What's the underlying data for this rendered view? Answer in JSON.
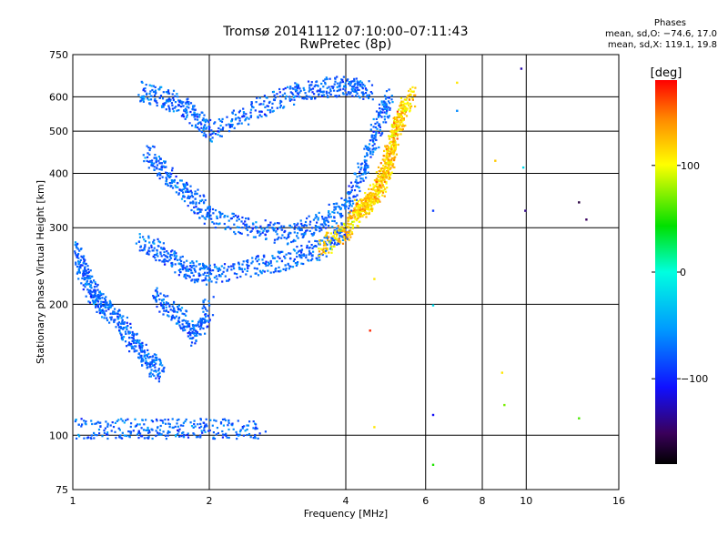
{
  "header": {
    "title_line1": "Tromsø 20141112 07:10:00–07:11:43",
    "title_line2": "RwPretec (8p)",
    "stats_heading": "Phases",
    "stats_o": "mean, sd,O: −74.6, 17.0",
    "stats_x": "mean, sd,X: 119.1, 19.8"
  },
  "colorbar": {
    "label": "[deg]",
    "ticks": [
      {
        "label": "100",
        "value": 100
      },
      {
        "label": "0",
        "value": 0
      },
      {
        "label": "−100",
        "value": -100
      }
    ],
    "range": [
      -180,
      180
    ]
  },
  "chart_data": {
    "type": "scatter",
    "title": "Tromsø 20141112 07:10:00–07:11:43",
    "subtitle": "RwPretec (8p)",
    "xlabel": "Frequency [MHz]",
    "ylabel": "Stationary phase Virtual Height [km]",
    "x_scale": "log",
    "y_scale": "log",
    "xlim": [
      1,
      16
    ],
    "ylim": [
      75,
      750
    ],
    "x_ticks": [
      {
        "label": "1",
        "value": 1
      },
      {
        "label": "2",
        "value": 2
      },
      {
        "label": "4",
        "value": 4
      },
      {
        "label": "6",
        "value": 6
      },
      {
        "label": "8",
        "value": 8
      },
      {
        "label": "10",
        "value": 10
      },
      {
        "label": "16",
        "value": 16
      }
    ],
    "y_ticks": [
      {
        "label": "75",
        "value": 75
      },
      {
        "label": "100",
        "value": 100
      },
      {
        "label": "200",
        "value": 200
      },
      {
        "label": "300",
        "value": 300
      },
      {
        "label": "400",
        "value": 400
      },
      {
        "label": "500",
        "value": 500
      },
      {
        "label": "600",
        "value": 600
      },
      {
        "label": "750",
        "value": 750
      }
    ],
    "grid": true,
    "color_scale": "phase (deg), rainbow from black (−180) to red (180)",
    "series": [
      {
        "name": "O-mode",
        "phase_mean": -74.6,
        "phase_sd": 17.0
      },
      {
        "name": "X-mode",
        "phase_mean": 119.1,
        "phase_sd": 19.8
      }
    ],
    "traces": [
      {
        "mode": "O",
        "points": [
          [
            1.0,
            270
          ],
          [
            1.05,
            240
          ],
          [
            1.1,
            215
          ],
          [
            1.15,
            200
          ],
          [
            1.25,
            185
          ],
          [
            1.35,
            165
          ],
          [
            1.45,
            150
          ],
          [
            1.55,
            140
          ]
        ]
      },
      {
        "mode": "O",
        "points": [
          [
            1.4,
            620
          ],
          [
            1.6,
            600
          ],
          [
            1.8,
            560
          ],
          [
            2.0,
            500
          ],
          [
            2.5,
            560
          ],
          [
            3.0,
            610
          ],
          [
            3.5,
            630
          ],
          [
            4.0,
            640
          ],
          [
            4.5,
            620
          ]
        ]
      },
      {
        "mode": "O",
        "points": [
          [
            1.45,
            450
          ],
          [
            1.6,
            400
          ],
          [
            1.8,
            360
          ],
          [
            2.0,
            320
          ],
          [
            2.5,
            300
          ],
          [
            3.0,
            290
          ],
          [
            3.5,
            310
          ],
          [
            4.0,
            340
          ],
          [
            4.4,
            420
          ],
          [
            4.7,
            520
          ],
          [
            5.0,
            600
          ]
        ]
      },
      {
        "mode": "O",
        "points": [
          [
            1.4,
            280
          ],
          [
            1.6,
            260
          ],
          [
            1.8,
            240
          ],
          [
            2.0,
            235
          ],
          [
            2.5,
            245
          ],
          [
            3.0,
            255
          ],
          [
            3.5,
            270
          ],
          [
            4.0,
            300
          ]
        ]
      },
      {
        "mode": "O",
        "points": [
          [
            1.5,
            210
          ],
          [
            1.7,
            190
          ],
          [
            1.85,
            170
          ],
          [
            2.0,
            200
          ]
        ]
      },
      {
        "mode": "O",
        "points": [
          [
            1.0,
            104
          ],
          [
            1.3,
            104
          ],
          [
            1.6,
            104
          ],
          [
            2.0,
            104
          ],
          [
            2.6,
            104
          ]
        ]
      },
      {
        "mode": "X",
        "points": [
          [
            3.5,
            270
          ],
          [
            4.0,
            300
          ],
          [
            4.3,
            330
          ],
          [
            4.6,
            360
          ],
          [
            4.9,
            420
          ],
          [
            5.1,
            500
          ],
          [
            5.4,
            580
          ]
        ]
      },
      {
        "mode": "X",
        "points": [
          [
            4.2,
            330
          ],
          [
            4.5,
            340
          ],
          [
            4.8,
            380
          ],
          [
            5.0,
            430
          ],
          [
            5.2,
            520
          ],
          [
            5.6,
            620
          ]
        ]
      }
    ],
    "sparse_points": [
      {
        "x": 6.2,
        "y": 330,
        "phase": -90
      },
      {
        "x": 6.2,
        "y": 200,
        "phase": -20
      },
      {
        "x": 6.2,
        "y": 112,
        "phase": -110
      },
      {
        "x": 6.2,
        "y": 86,
        "phase": 50
      },
      {
        "x": 7.0,
        "y": 650,
        "phase": 110
      },
      {
        "x": 7.0,
        "y": 560,
        "phase": -60
      },
      {
        "x": 8.5,
        "y": 430,
        "phase": 120
      },
      {
        "x": 8.8,
        "y": 140,
        "phase": 110
      },
      {
        "x": 8.9,
        "y": 118,
        "phase": 70
      },
      {
        "x": 9.7,
        "y": 700,
        "phase": -130
      },
      {
        "x": 9.8,
        "y": 415,
        "phase": -20
      },
      {
        "x": 9.9,
        "y": 330,
        "phase": -140
      },
      {
        "x": 13.0,
        "y": 345,
        "phase": -160
      },
      {
        "x": 13.5,
        "y": 315,
        "phase": -150
      },
      {
        "x": 13.0,
        "y": 110,
        "phase": 60
      },
      {
        "x": 4.6,
        "y": 230,
        "phase": 110
      },
      {
        "x": 4.5,
        "y": 175,
        "phase": 170
      },
      {
        "x": 4.6,
        "y": 105,
        "phase": 110
      }
    ]
  }
}
